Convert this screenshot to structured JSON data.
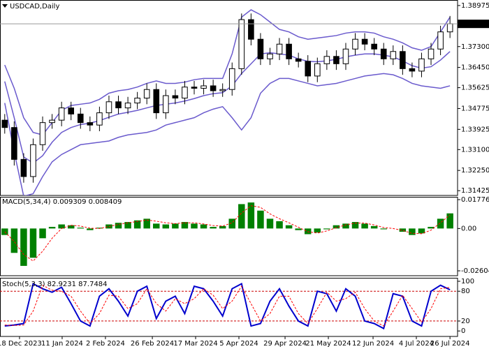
{
  "chart_data": [
    {
      "type": "candlestick",
      "title": "USDCAD,Daily",
      "open": [
        1.343,
        1.34,
        1.327,
        1.32,
        1.333,
        1.342,
        1.343,
        1.348,
        1.3455,
        1.342,
        1.341,
        1.346,
        1.3505,
        1.348,
        1.35,
        1.352,
        1.3555,
        1.346,
        1.353,
        1.352,
        1.3565,
        1.356,
        1.357,
        1.355,
        1.3555,
        1.364,
        1.384,
        1.376,
        1.368,
        1.37,
        1.374,
        1.368,
        1.367,
        1.361,
        1.366,
        1.369,
        1.366,
        1.372,
        1.376,
        1.374,
        1.372,
        1.368,
        1.371,
        1.364,
        1.363,
        1.368,
        1.372,
        1.379
      ],
      "high": [
        1.3455,
        1.3425,
        1.3295,
        1.3355,
        1.3445,
        1.3455,
        1.3505,
        1.3505,
        1.348,
        1.3445,
        1.3485,
        1.353,
        1.353,
        1.3525,
        1.3545,
        1.358,
        1.358,
        1.3555,
        1.3555,
        1.359,
        1.359,
        1.3595,
        1.3595,
        1.358,
        1.3665,
        1.3865,
        1.3865,
        1.3785,
        1.3725,
        1.3765,
        1.3765,
        1.3705,
        1.3695,
        1.3685,
        1.3715,
        1.3715,
        1.3745,
        1.3785,
        1.3785,
        1.3765,
        1.3745,
        1.3735,
        1.3735,
        1.3665,
        1.3705,
        1.3745,
        1.3815,
        1.3855
      ],
      "low": [
        1.3375,
        1.3245,
        1.3175,
        1.3175,
        1.3305,
        1.3395,
        1.3405,
        1.343,
        1.3395,
        1.3385,
        1.3385,
        1.3435,
        1.3455,
        1.3455,
        1.3475,
        1.3495,
        1.3435,
        1.3435,
        1.3495,
        1.3495,
        1.3535,
        1.3535,
        1.3525,
        1.3525,
        1.353,
        1.3615,
        1.3735,
        1.3655,
        1.3655,
        1.3675,
        1.3655,
        1.3645,
        1.3585,
        1.3585,
        1.3635,
        1.3635,
        1.3635,
        1.3695,
        1.3715,
        1.3695,
        1.3655,
        1.3655,
        1.3615,
        1.3605,
        1.3605,
        1.3655,
        1.3695,
        1.3765
      ],
      "close": [
        1.34,
        1.327,
        1.32,
        1.333,
        1.342,
        1.343,
        1.348,
        1.3455,
        1.342,
        1.341,
        1.346,
        1.3505,
        1.348,
        1.35,
        1.352,
        1.3555,
        1.346,
        1.353,
        1.352,
        1.3565,
        1.356,
        1.357,
        1.355,
        1.3555,
        1.364,
        1.384,
        1.376,
        1.368,
        1.37,
        1.374,
        1.368,
        1.367,
        1.361,
        1.366,
        1.369,
        1.366,
        1.372,
        1.376,
        1.374,
        1.372,
        1.368,
        1.371,
        1.364,
        1.363,
        1.368,
        1.372,
        1.379,
        1.3823
      ],
      "bull_color": "#ffffff",
      "bear_color": "#000000",
      "wick_color": "#000000",
      "series": [
        {
          "color": "#6a5acd",
          "values": [
            1.3655,
            1.356,
            1.344,
            1.338,
            1.337,
            1.342,
            1.347,
            1.349,
            1.3495,
            1.35,
            1.3515,
            1.354,
            1.355,
            1.3555,
            1.3565,
            1.358,
            1.359,
            1.358,
            1.358,
            1.3585,
            1.3595,
            1.36,
            1.36,
            1.36,
            1.37,
            1.385,
            1.388,
            1.386,
            1.383,
            1.38,
            1.379,
            1.377,
            1.376,
            1.3765,
            1.377,
            1.3775,
            1.3785,
            1.379,
            1.379,
            1.3785,
            1.377,
            1.376,
            1.3745,
            1.3725,
            1.3715,
            1.373,
            1.379,
            1.385
          ]
        },
        {
          "color": "#6a5acd",
          "values": [
            1.3588,
            1.344,
            1.328,
            1.3255,
            1.3285,
            1.334,
            1.338,
            1.34,
            1.3412,
            1.3418,
            1.3428,
            1.3442,
            1.3455,
            1.3462,
            1.347,
            1.348,
            1.349,
            1.3495,
            1.35,
            1.3508,
            1.3518,
            1.353,
            1.3538,
            1.3542,
            1.357,
            1.362,
            1.366,
            1.37,
            1.3705,
            1.37,
            1.3695,
            1.368,
            1.367,
            1.3668,
            1.3672,
            1.3678,
            1.3688,
            1.3695,
            1.37,
            1.37,
            1.3695,
            1.3688,
            1.3672,
            1.3652,
            1.3642,
            1.3648,
            1.3675,
            1.371
          ]
        },
        {
          "color": "#6a5acd",
          "values": [
            1.35,
            1.33,
            1.312,
            1.313,
            1.32,
            1.326,
            1.329,
            1.331,
            1.333,
            1.3335,
            1.334,
            1.3345,
            1.336,
            1.337,
            1.3375,
            1.338,
            1.339,
            1.341,
            1.342,
            1.343,
            1.344,
            1.346,
            1.3475,
            1.3485,
            1.344,
            1.339,
            1.344,
            1.354,
            1.358,
            1.36,
            1.36,
            1.359,
            1.358,
            1.357,
            1.3575,
            1.358,
            1.359,
            1.36,
            1.361,
            1.3615,
            1.362,
            1.3615,
            1.36,
            1.358,
            1.357,
            1.3565,
            1.356,
            1.357
          ]
        }
      ],
      "last_price": 1.38227,
      "ylim": [
        1.3123,
        1.392
      ],
      "yticks": [
        1.38975,
        {
          "value": 1.373,
          "label": "1.37300"
        },
        {
          "value": 1.3645,
          "label": "1.36450"
        },
        1.35625,
        1.34775,
        1.33925,
        {
          "value": 1.331,
          "label": "1.33100"
        },
        {
          "value": 1.3225,
          "label": "1.32250"
        },
        1.31425
      ]
    },
    {
      "type": "bar",
      "title": "MACD(5,34,4) 0.009309 0.008409",
      "color": "#008000",
      "values": [
        -0.004,
        -0.015,
        -0.023,
        -0.018,
        -0.006,
        0.001,
        0.0025,
        0.002,
        0.0005,
        -0.001,
        0.0005,
        0.0025,
        0.0035,
        0.004,
        0.005,
        0.006,
        0.003,
        0.0025,
        0.003,
        0.004,
        0.003,
        0.0025,
        0.001,
        0.0015,
        0.006,
        0.015,
        0.016,
        0.011,
        0.006,
        0.0045,
        0.002,
        -0.001,
        -0.0035,
        -0.0025,
        -0.0005,
        0.002,
        0.003,
        0.004,
        0.003,
        0.0015,
        -0.0005,
        0.0,
        -0.002,
        -0.004,
        -0.003,
        0.001,
        0.006,
        0.009309
      ],
      "signal": {
        "color": "#ff0000",
        "dashed": true,
        "values": [
          -0.002,
          -0.008,
          -0.016,
          -0.02,
          -0.014,
          -0.006,
          0.0,
          0.002,
          0.0015,
          0.0002,
          0.0,
          0.0012,
          0.0025,
          0.0035,
          0.0043,
          0.0052,
          0.0045,
          0.0035,
          0.003,
          0.0035,
          0.0035,
          0.0028,
          0.0018,
          0.0015,
          0.0035,
          0.0095,
          0.014,
          0.013,
          0.009,
          0.006,
          0.0035,
          0.0008,
          -0.002,
          -0.0028,
          -0.0015,
          0.0005,
          0.0022,
          0.0033,
          0.0033,
          0.0022,
          0.0006,
          0.0,
          -0.0012,
          -0.003,
          -0.0032,
          -0.001,
          0.0035,
          0.008409
        ]
      },
      "ylim": [
        -0.02905,
        0.01948
      ],
      "yticks": [
        0.01776,
        {
          "value": 0,
          "label": "0.00"
        },
        -0.026047
      ]
    },
    {
      "type": "line",
      "title": "Stoch(5,3,3) 82.9231 87.7484",
      "series": [
        {
          "color": "#0000cd",
          "width": 2,
          "values": [
            10,
            12,
            15,
            95,
            85,
            78,
            88,
            55,
            20,
            10,
            70,
            85,
            60,
            30,
            80,
            90,
            25,
            60,
            70,
            35,
            90,
            85,
            60,
            30,
            85,
            95,
            10,
            15,
            60,
            85,
            50,
            20,
            10,
            80,
            75,
            40,
            85,
            70,
            20,
            15,
            5,
            75,
            70,
            20,
            10,
            80,
            92,
            82.9231
          ]
        },
        {
          "color": "#ff0000",
          "width": 1,
          "dashed": true,
          "values": [
            12,
            11,
            12,
            40,
            92,
            82,
            80,
            70,
            40,
            15,
            35,
            72,
            70,
            45,
            55,
            85,
            55,
            40,
            65,
            55,
            65,
            85,
            72,
            45,
            60,
            90,
            55,
            20,
            35,
            70,
            70,
            35,
            15,
            45,
            78,
            60,
            65,
            78,
            45,
            20,
            10,
            40,
            72,
            45,
            18,
            45,
            85,
            87.7484
          ]
        }
      ],
      "levels": [
        80,
        20
      ],
      "level_color": "#cc0000",
      "ylim": [
        -11,
        107
      ],
      "yticks": [
        100,
        80,
        20,
        0
      ],
      "xlim": [
        -0.5,
        47.8
      ],
      "xticks": [
        {
          "value": 1.56,
          "label": "18 Dec 2023"
        },
        {
          "value": 6.06,
          "label": "11 Jan 2024"
        },
        {
          "value": 10.63,
          "label": "2 Feb 2024"
        },
        {
          "value": 15.58,
          "label": "26 Feb 2024"
        },
        {
          "value": 20.15,
          "label": "17 Mar 2024"
        },
        {
          "value": 24.72,
          "label": "5 Apr 2024"
        },
        {
          "value": 29.59,
          "label": "29 Apr 2024"
        },
        {
          "value": 34.16,
          "label": "21 May 2024"
        },
        {
          "value": 38.88,
          "label": "12 Jun 2024"
        },
        {
          "value": 43.45,
          "label": "4 Jul 2024"
        },
        {
          "value": 47,
          "label": "26 Jul 2024"
        }
      ]
    }
  ]
}
